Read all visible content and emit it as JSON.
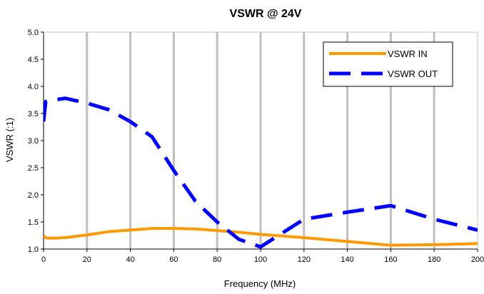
{
  "chart_data": {
    "type": "line",
    "title": "VSWR @ 24V",
    "xlabel": "Frequency (MHz)",
    "ylabel": "VSWR (:1)",
    "xlim": [
      0,
      200
    ],
    "ylim": [
      1.0,
      5.0
    ],
    "x_ticks": [
      0,
      20,
      40,
      60,
      80,
      100,
      120,
      140,
      160,
      180,
      200
    ],
    "y_ticks": [
      1.0,
      1.5,
      2.0,
      2.5,
      3.0,
      3.5,
      4.0,
      4.5,
      5.0
    ],
    "x_tick_labels": [
      "0",
      "20",
      "40",
      "60",
      "80",
      "100",
      "120",
      "140",
      "160",
      "180",
      "200"
    ],
    "y_tick_labels": [
      "1.0",
      "1.5",
      "2.0",
      "2.5",
      "3.0",
      "3.5",
      "4.0",
      "4.5",
      "5.0"
    ],
    "grid": "vertical",
    "legend_position": "top-right",
    "series": [
      {
        "name": "VSWR IN",
        "color": "#ff9900",
        "style": "solid",
        "x": [
          0,
          1,
          2,
          5,
          10,
          20,
          30,
          40,
          50,
          60,
          70,
          80,
          90,
          100,
          120,
          140,
          160,
          180,
          200
        ],
        "y": [
          1.25,
          1.21,
          1.2,
          1.2,
          1.21,
          1.26,
          1.32,
          1.35,
          1.38,
          1.38,
          1.37,
          1.34,
          1.31,
          1.27,
          1.21,
          1.14,
          1.07,
          1.08,
          1.1
        ]
      },
      {
        "name": "VSWR OUT",
        "color": "#0000ff",
        "style": "dashed",
        "x": [
          0,
          1,
          2,
          5,
          10,
          20,
          30,
          40,
          50,
          60,
          70,
          80,
          90,
          100,
          120,
          140,
          160,
          180,
          200
        ],
        "y": [
          3.35,
          3.72,
          3.73,
          3.75,
          3.78,
          3.69,
          3.57,
          3.35,
          3.07,
          2.45,
          1.88,
          1.5,
          1.18,
          1.04,
          1.55,
          1.68,
          1.8,
          1.55,
          1.35
        ]
      }
    ]
  }
}
